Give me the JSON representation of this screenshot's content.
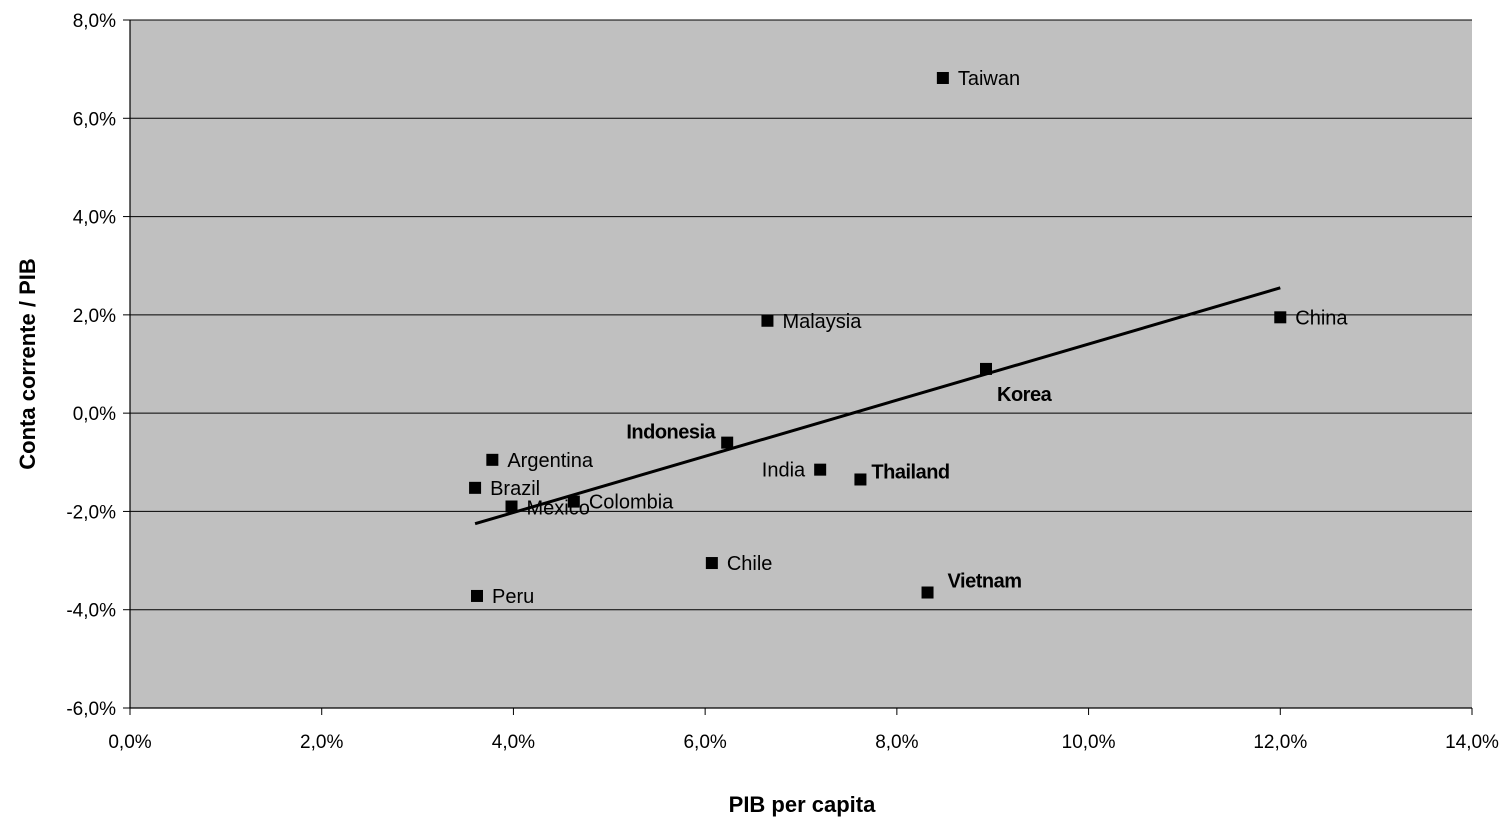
{
  "chart_data": {
    "type": "scatter",
    "title": "",
    "xlabel": "PIB per capita",
    "ylabel": "Conta corrente / PIB",
    "xlim": [
      0,
      14
    ],
    "ylim": [
      -6,
      8
    ],
    "x_ticks": [
      "0,0%",
      "2,0%",
      "4,0%",
      "6,0%",
      "8,0%",
      "10,0%",
      "12,0%",
      "14,0%"
    ],
    "y_ticks": [
      "-6,0%",
      "-4,0%",
      "-2,0%",
      "0,0%",
      "2,0%",
      "4,0%",
      "6,0%",
      "8,0%"
    ],
    "grid": "horizontal",
    "plot_background": "#c0c0c0",
    "marker_color": "#000000",
    "points": [
      {
        "label": "Taiwan",
        "x": 8.48,
        "y": 6.82
      },
      {
        "label": "Malaysia",
        "x": 6.65,
        "y": 1.88
      },
      {
        "label": "China",
        "x": 12.0,
        "y": 1.95
      },
      {
        "label": "Korea",
        "x": 8.93,
        "y": 0.9
      },
      {
        "label": "Indonesia",
        "x": 6.23,
        "y": -0.6
      },
      {
        "label": "India",
        "x": 7.2,
        "y": -1.15
      },
      {
        "label": "Thailand",
        "x": 7.62,
        "y": -1.35
      },
      {
        "label": "Argentina",
        "x": 3.78,
        "y": -0.95
      },
      {
        "label": "Brazil",
        "x": 3.6,
        "y": -1.52
      },
      {
        "label": "Mexico",
        "x": 3.98,
        "y": -1.9
      },
      {
        "label": "Colombia",
        "x": 4.63,
        "y": -1.8
      },
      {
        "label": "Chile",
        "x": 6.07,
        "y": -3.05
      },
      {
        "label": "Vietnam",
        "x": 8.32,
        "y": -3.65
      },
      {
        "label": "Peru",
        "x": 3.62,
        "y": -3.72
      }
    ],
    "trendline": {
      "x": [
        3.6,
        12.0
      ],
      "y": [
        -2.25,
        2.55
      ]
    }
  }
}
